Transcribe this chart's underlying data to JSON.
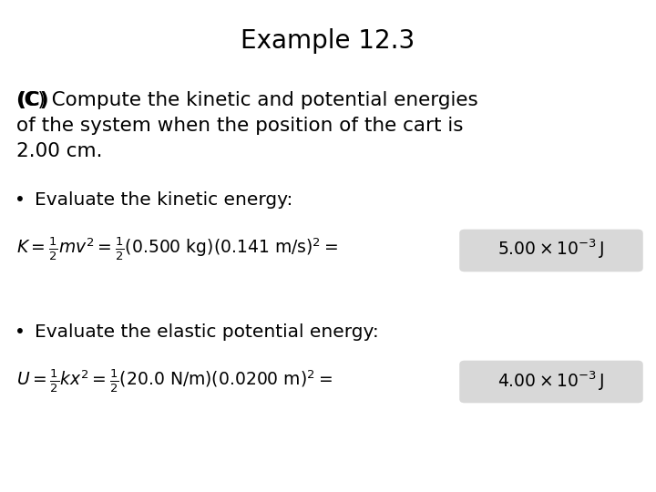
{
  "title": "Example 12.3",
  "title_fontsize": 20,
  "bg_color": "#ffffff",
  "text_color": "#000000",
  "highlight_color": "#d8d8d8",
  "body_fontsize": 15.5,
  "bullet_fontsize": 14.5,
  "eq_fontsize": 13.5,
  "eq1_math": "$K = \\frac{1}{2}mv^2 = \\frac{1}{2}(0.500\\ \\mathrm{kg})(0.141\\ \\mathrm{m/s})^2 = $",
  "eq1_result": "$5.00 \\times 10^{-3}\\,\\mathrm{J}$",
  "eq2_math": "$U = \\frac{1}{2}kx^2 = \\frac{1}{2}(20.0\\ \\mathrm{N/m})(0.0200\\ \\mathrm{m})^2 = $",
  "eq2_result": "$4.00 \\times 10^{-3}\\,\\mathrm{J}$",
  "bullet1_text": "Evaluate the kinetic energy:",
  "bullet2_text": "Evaluate the elastic potential energy:"
}
